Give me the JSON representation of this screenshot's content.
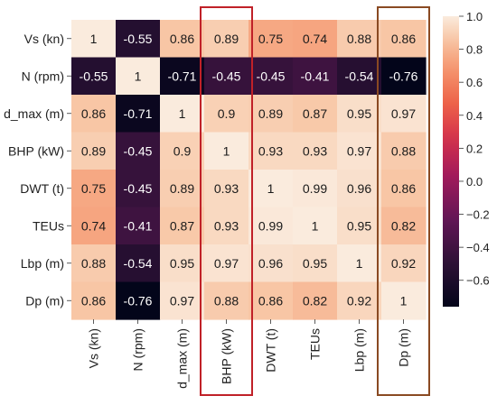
{
  "chart_data": {
    "type": "heatmap",
    "row_labels": [
      "Vs (kn)",
      "N (rpm)",
      "d_max (m)",
      "BHP (kW)",
      "DWT (t)",
      "TEUs",
      "Lbp (m)",
      "Dp (m)"
    ],
    "col_labels": [
      "Vs (kn)",
      "N (rpm)",
      "d_max (m)",
      "BHP (kW)",
      "DWT (t)",
      "TEUs",
      "Lbp (m)",
      "Dp (m)"
    ],
    "values": [
      [
        1,
        -0.55,
        0.86,
        0.89,
        0.75,
        0.74,
        0.88,
        0.86
      ],
      [
        -0.55,
        1,
        -0.71,
        -0.45,
        -0.45,
        -0.41,
        -0.54,
        -0.76
      ],
      [
        0.86,
        -0.71,
        1,
        0.9,
        0.89,
        0.87,
        0.95,
        0.97
      ],
      [
        0.89,
        -0.45,
        0.9,
        1,
        0.93,
        0.93,
        0.97,
        0.88
      ],
      [
        0.75,
        -0.45,
        0.89,
        0.93,
        1,
        0.99,
        0.96,
        0.86
      ],
      [
        0.74,
        -0.41,
        0.87,
        0.93,
        0.99,
        1,
        0.95,
        0.82
      ],
      [
        0.88,
        -0.54,
        0.95,
        0.97,
        0.96,
        0.95,
        1,
        0.92
      ],
      [
        0.86,
        -0.76,
        0.97,
        0.88,
        0.86,
        0.82,
        0.92,
        1
      ]
    ],
    "value_labels": [
      [
        "1",
        "-0.55",
        "0.86",
        "0.89",
        "0.75",
        "0.74",
        "0.88",
        "0.86"
      ],
      [
        "-0.55",
        "1",
        "-0.71",
        "-0.45",
        "-0.45",
        "-0.41",
        "-0.54",
        "-0.76"
      ],
      [
        "0.86",
        "-0.71",
        "1",
        "0.9",
        "0.89",
        "0.87",
        "0.95",
        "0.97"
      ],
      [
        "0.89",
        "-0.45",
        "0.9",
        "1",
        "0.93",
        "0.93",
        "0.97",
        "0.88"
      ],
      [
        "0.75",
        "-0.45",
        "0.89",
        "0.93",
        "1",
        "0.99",
        "0.96",
        "0.86"
      ],
      [
        "0.74",
        "-0.41",
        "0.87",
        "0.93",
        "0.99",
        "1",
        "0.95",
        "0.82"
      ],
      [
        "0.88",
        "-0.54",
        "0.95",
        "0.97",
        "0.96",
        "0.95",
        "1",
        "0.92"
      ],
      [
        "0.86",
        "-0.76",
        "0.97",
        "0.88",
        "0.86",
        "0.82",
        "0.92",
        "1"
      ]
    ],
    "colormap": "rocket",
    "color_range": [
      -0.76,
      1.0
    ],
    "colorbar": {
      "ticks": [
        1.0,
        0.8,
        0.6,
        0.4,
        0.2,
        0.0,
        -0.2,
        -0.4,
        -0.6
      ],
      "tick_labels": [
        "1.0",
        "0.8",
        "0.6",
        "0.4",
        "0.2",
        "0.0",
        "−0.2",
        "−0.4",
        "−0.6"
      ]
    },
    "highlighted_columns": [
      "BHP (kW)",
      "Dp (m)"
    ],
    "highlight_colors": [
      "#c02128",
      "#8a4a22"
    ],
    "grid": false
  }
}
